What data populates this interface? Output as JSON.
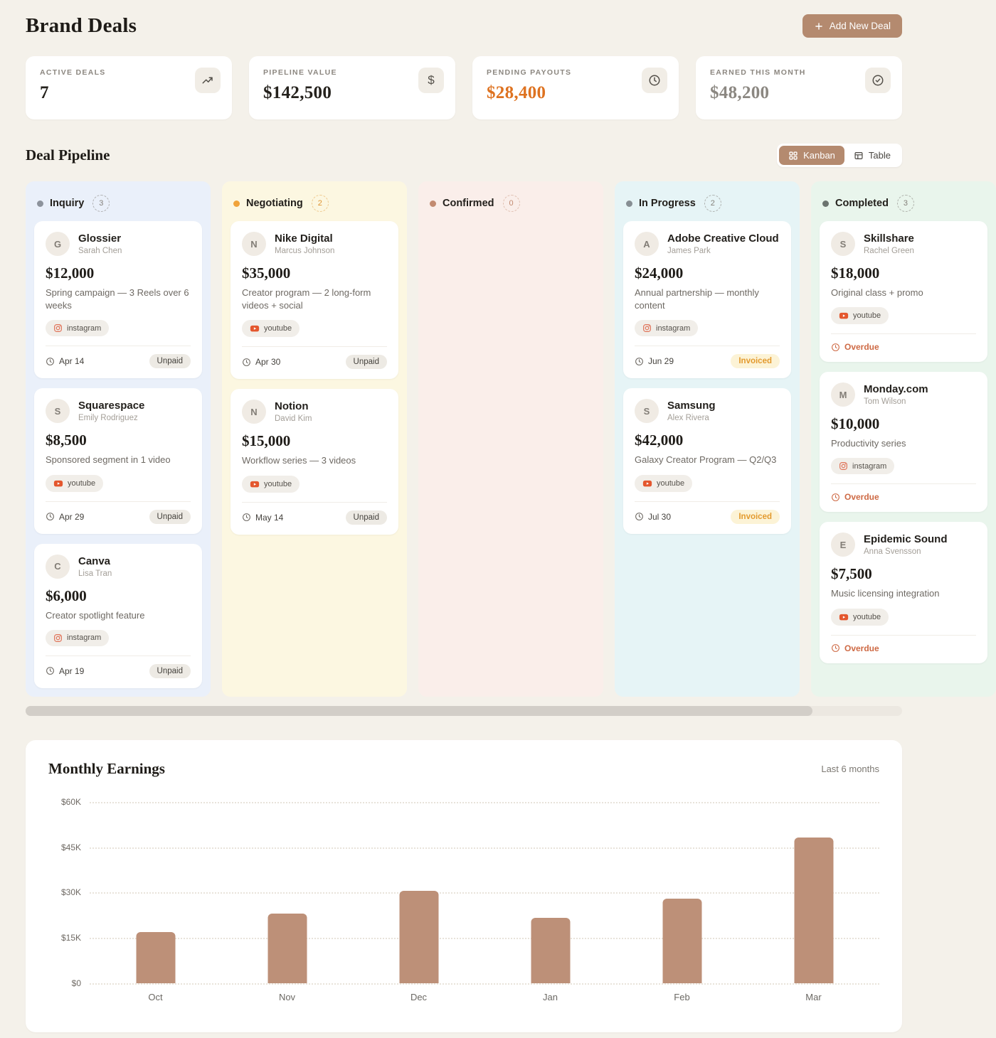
{
  "page": {
    "title": "Brand Deals"
  },
  "header": {
    "add_button_label": "Add New Deal"
  },
  "stats": [
    {
      "label": "ACTIVE DEALS",
      "value": "7",
      "icon": "trending-up-icon"
    },
    {
      "label": "PIPELINE VALUE",
      "value": "$142,500",
      "icon": "dollar-icon"
    },
    {
      "label": "PENDING PAYOUTS",
      "value": "$28,400",
      "icon": "clock-icon"
    },
    {
      "label": "EARNED THIS MONTH",
      "value": "$48,200",
      "icon": "check-circle-icon"
    }
  ],
  "pipeline": {
    "title": "Deal Pipeline",
    "view_toggle": {
      "kanban_label": "Kanban",
      "table_label": "Table",
      "active": "Kanban"
    },
    "columns": [
      {
        "name": "Inquiry",
        "count": "3",
        "cards": [
          {
            "initial": "G",
            "brand": "Glossier",
            "contact": "Sarah Chen",
            "amount": "$12,000",
            "description": "Spring campaign — 3 Reels over 6 weeks",
            "platform": "instagram",
            "date": "Apr 14",
            "status": "Unpaid"
          },
          {
            "initial": "S",
            "brand": "Squarespace",
            "contact": "Emily Rodriguez",
            "amount": "$8,500",
            "description": "Sponsored segment in 1 video",
            "platform": "youtube",
            "date": "Apr 29",
            "status": "Unpaid"
          },
          {
            "initial": "C",
            "brand": "Canva",
            "contact": "Lisa Tran",
            "amount": "$6,000",
            "description": "Creator spotlight feature",
            "platform": "instagram",
            "date": "Apr 19",
            "status": "Unpaid"
          }
        ]
      },
      {
        "name": "Negotiating",
        "count": "2",
        "cards": [
          {
            "initial": "N",
            "brand": "Nike Digital",
            "contact": "Marcus Johnson",
            "amount": "$35,000",
            "description": "Creator program — 2 long-form videos + social",
            "platform": "youtube",
            "date": "Apr 30",
            "status": "Unpaid"
          },
          {
            "initial": "N",
            "brand": "Notion",
            "contact": "David Kim",
            "amount": "$15,000",
            "description": "Workflow series — 3 videos",
            "platform": "youtube",
            "date": "May 14",
            "status": "Unpaid"
          }
        ]
      },
      {
        "name": "Confirmed",
        "count": "0",
        "cards": []
      },
      {
        "name": "In Progress",
        "count": "2",
        "cards": [
          {
            "initial": "A",
            "brand": "Adobe Creative Cloud",
            "contact": "James Park",
            "amount": "$24,000",
            "description": "Annual partnership — monthly content",
            "platform": "instagram",
            "date": "Jun 29",
            "status": "Invoiced"
          },
          {
            "initial": "S",
            "brand": "Samsung",
            "contact": "Alex Rivera",
            "amount": "$42,000",
            "description": "Galaxy Creator Program — Q2/Q3",
            "platform": "youtube",
            "date": "Jul 30",
            "status": "Invoiced"
          }
        ]
      },
      {
        "name": "Completed",
        "count": "3",
        "cards": [
          {
            "initial": "S",
            "brand": "Skillshare",
            "contact": "Rachel Green",
            "amount": "$18,000",
            "description": "Original class + promo",
            "platform": "youtube",
            "date": "Overdue",
            "status": ""
          },
          {
            "initial": "M",
            "brand": "Monday.com",
            "contact": "Tom Wilson",
            "amount": "$10,000",
            "description": "Productivity series",
            "platform": "instagram",
            "date": "Overdue",
            "status": ""
          },
          {
            "initial": "E",
            "brand": "Epidemic Sound",
            "contact": "Anna Svensson",
            "amount": "$7,500",
            "description": "Music licensing integration",
            "platform": "youtube",
            "date": "Overdue",
            "status": ""
          }
        ]
      }
    ]
  },
  "chart_data": {
    "type": "bar",
    "title": "Monthly Earnings",
    "subtitle": "Last 6 months",
    "categories": [
      "Oct",
      "Nov",
      "Dec",
      "Jan",
      "Feb",
      "Mar"
    ],
    "values": [
      17000,
      23000,
      30500,
      21500,
      28000,
      48200
    ],
    "ylim": [
      0,
      60000
    ],
    "ytick_labels_top_down": [
      "$60K",
      "$45K",
      "$30K",
      "$15K",
      "$0"
    ],
    "xlabel": "",
    "ylabel": "",
    "grid": "horizontal-dotted",
    "legend": "none",
    "bar_color": "#BD9078"
  },
  "colors": {
    "accent": "#B48A6F",
    "page_background": "#F4F1EA",
    "pending_payout_value": "#DE7220",
    "earned_value": "#8B8781",
    "overdue_text": "#CE6A45",
    "invoiced_badge": "#FCF3D6",
    "column_inquiry": "#EAF0FA",
    "column_negotiating": "#FCF7E1",
    "column_confirmed": "#FAEEEA",
    "column_in_progress": "#E6F4F6",
    "column_completed": "#E9F5EC"
  }
}
